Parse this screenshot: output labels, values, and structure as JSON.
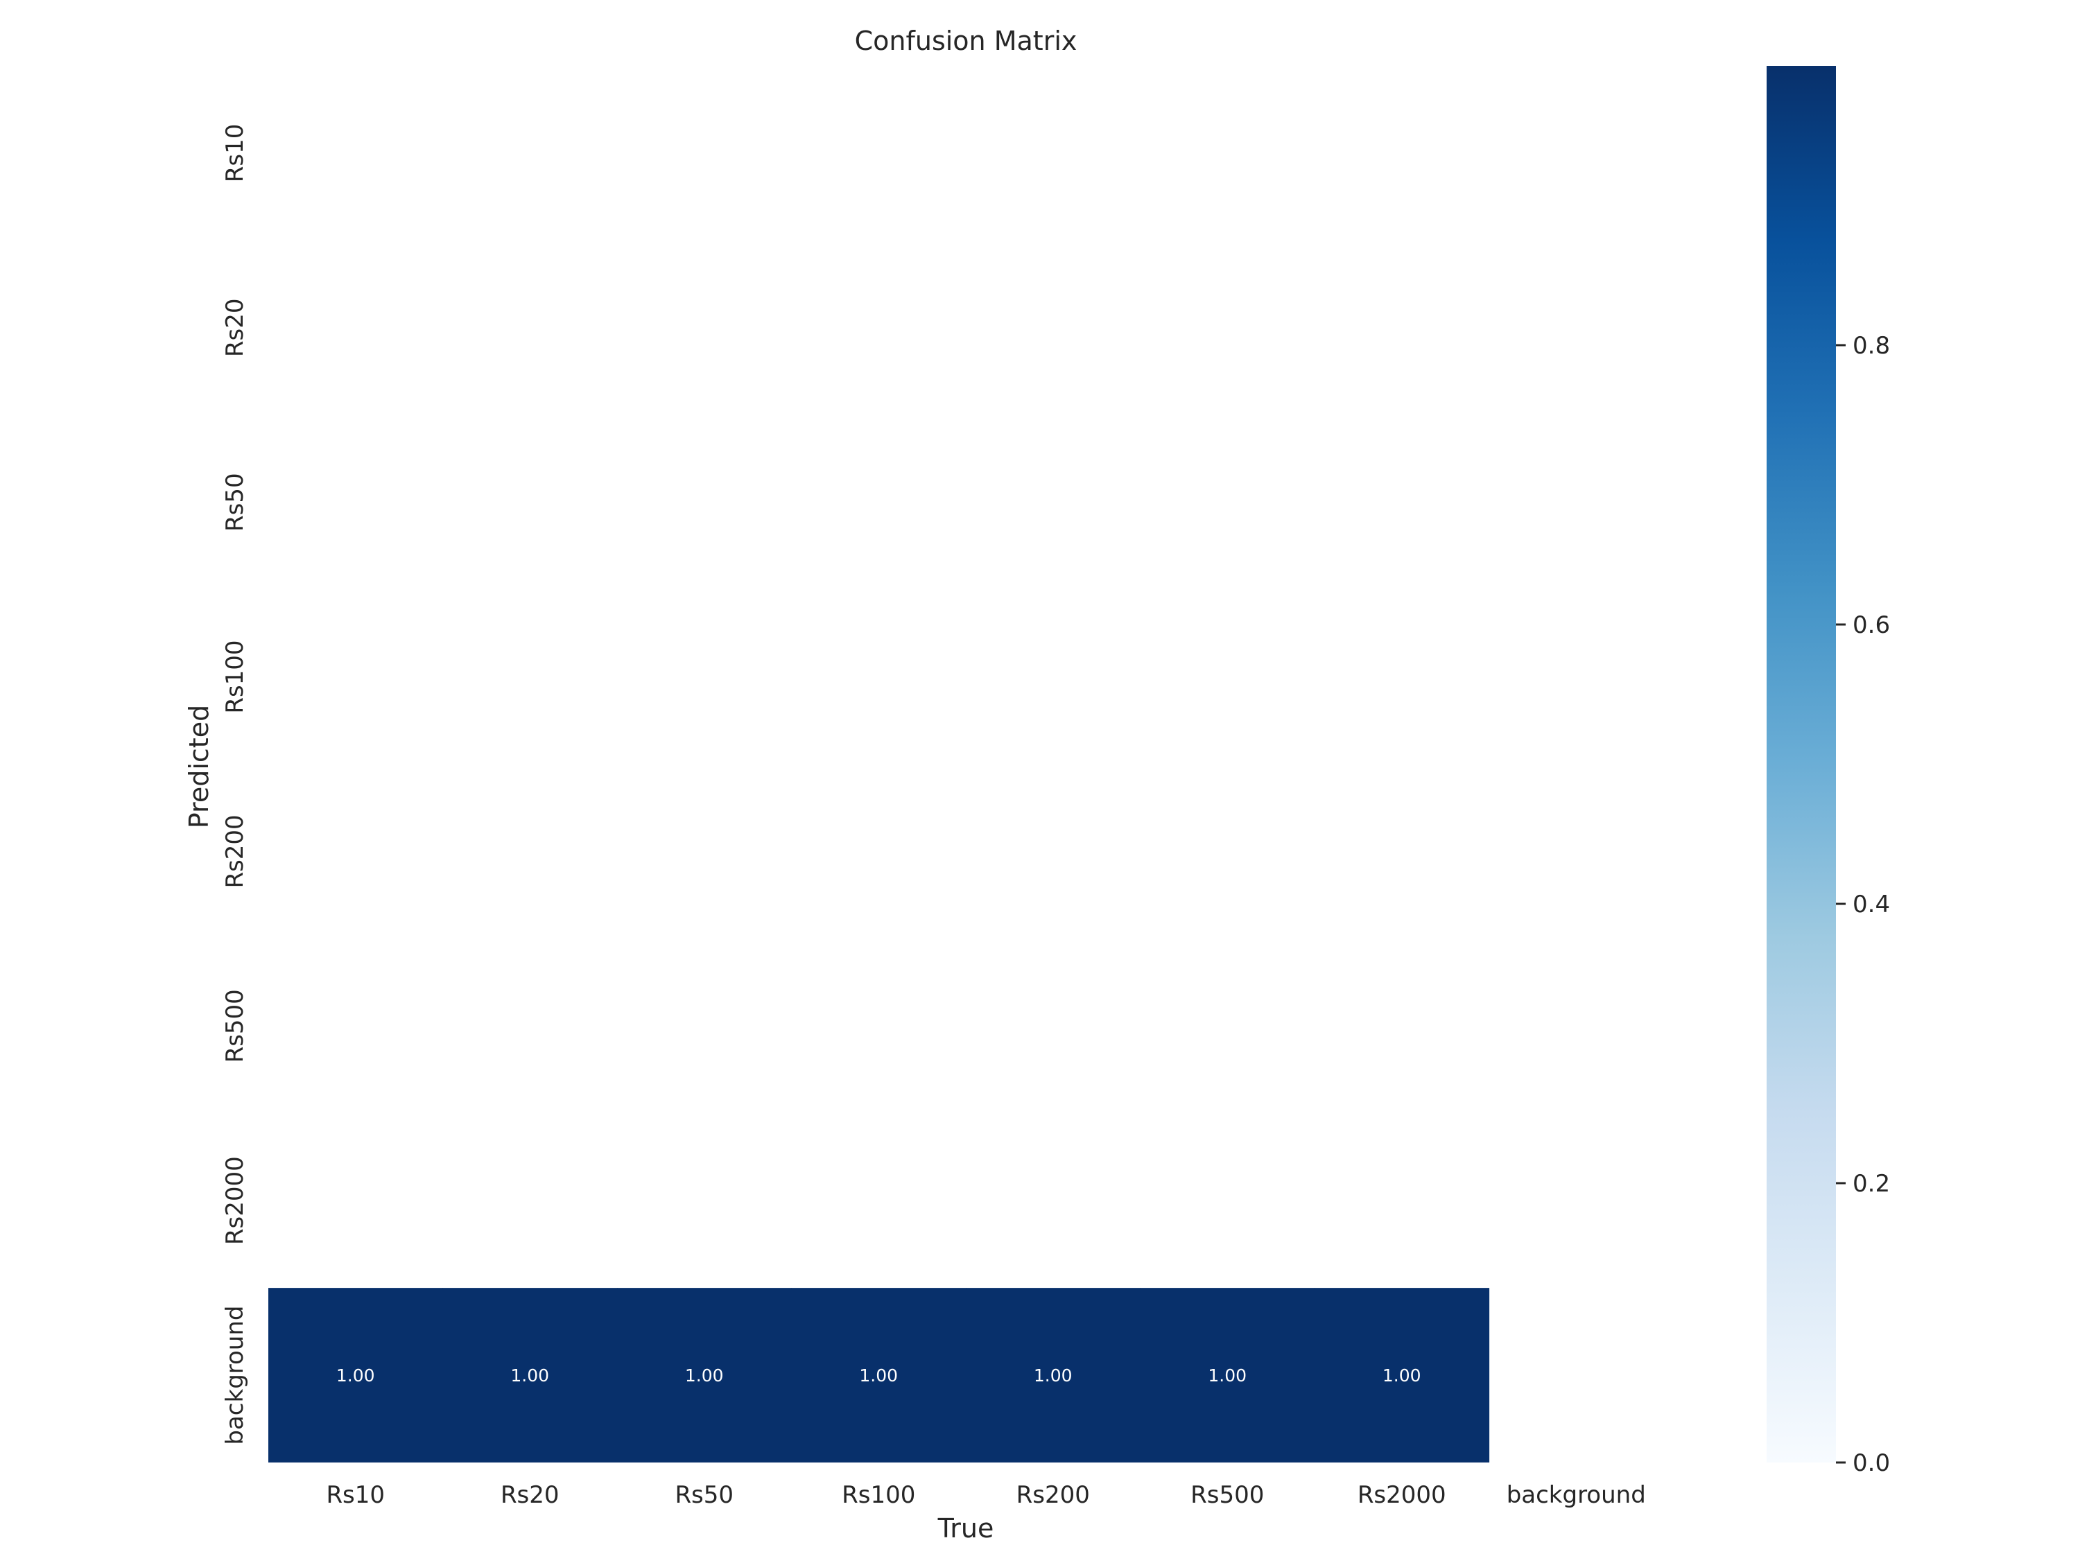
{
  "chart_data": {
    "type": "heatmap",
    "title": "Confusion Matrix",
    "xlabel": "True",
    "ylabel": "Predicted",
    "x_categories": [
      "Rs10",
      "Rs20",
      "Rs50",
      "Rs100",
      "Rs200",
      "Rs500",
      "Rs2000",
      "background"
    ],
    "y_categories": [
      "Rs10",
      "Rs20",
      "Rs50",
      "Rs100",
      "Rs200",
      "Rs500",
      "Rs2000",
      "background"
    ],
    "values": [
      [
        null,
        null,
        null,
        null,
        null,
        null,
        null,
        null
      ],
      [
        null,
        null,
        null,
        null,
        null,
        null,
        null,
        null
      ],
      [
        null,
        null,
        null,
        null,
        null,
        null,
        null,
        null
      ],
      [
        null,
        null,
        null,
        null,
        null,
        null,
        null,
        null
      ],
      [
        null,
        null,
        null,
        null,
        null,
        null,
        null,
        null
      ],
      [
        null,
        null,
        null,
        null,
        null,
        null,
        null,
        null
      ],
      [
        null,
        null,
        null,
        null,
        null,
        null,
        null,
        null
      ],
      [
        1.0,
        1.0,
        1.0,
        1.0,
        1.0,
        1.0,
        1.0,
        null
      ]
    ],
    "value_format": "2f",
    "cell_text_color": "#ffffff",
    "colormap": "Blues",
    "colorbar": {
      "range": [
        0,
        1
      ],
      "ticks": [
        "0.0",
        "0.2",
        "0.4",
        "0.6",
        "0.8"
      ],
      "tick_values": [
        0,
        0.2,
        0.4,
        0.6,
        0.8
      ]
    },
    "grid": false,
    "legend": "colorbar-right"
  }
}
